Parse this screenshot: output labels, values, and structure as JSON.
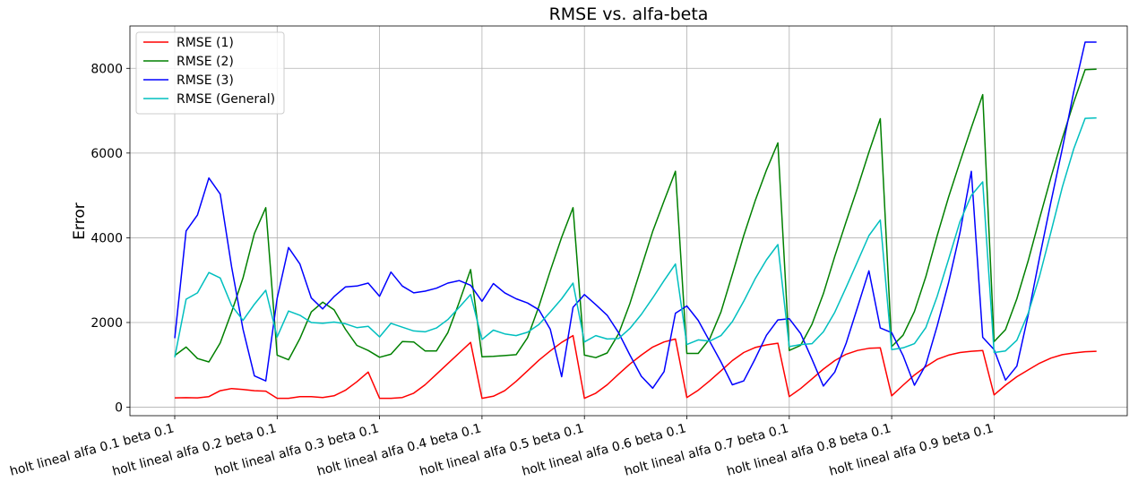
{
  "chart_data": {
    "type": "line",
    "title": "RMSE vs. alfa-beta",
    "xlabel": "",
    "ylabel": "Error",
    "ylim": [
      -200,
      9000
    ],
    "yticks": [
      0,
      2000,
      4000,
      6000,
      8000
    ],
    "grid": true,
    "legend_position": "top-left",
    "xtick_labels": [
      "holt lineal alfa 0.1 beta 0.1",
      "holt lineal alfa 0.2 beta 0.1",
      "holt lineal alfa 0.3 beta 0.1",
      "holt lineal alfa 0.4 beta 0.1",
      "holt lineal alfa 0.5 beta 0.1",
      "holt lineal alfa 0.6 beta 0.1",
      "holt lineal alfa 0.7 beta 0.1",
      "holt lineal alfa 0.8 beta 0.1",
      "holt lineal alfa 0.9 beta 0.1"
    ],
    "xtick_positions": [
      0,
      9,
      18,
      27,
      36,
      45,
      54,
      63,
      72
    ],
    "series": [
      {
        "name": "RMSE (1)",
        "color": "#ff0000",
        "values": [
          220,
          225,
          220,
          250,
          390,
          440,
          420,
          390,
          380,
          210,
          210,
          250,
          250,
          230,
          270,
          400,
          600,
          830,
          210,
          210,
          230,
          330,
          530,
          780,
          1030,
          1280,
          1530,
          210,
          260,
          390,
          610,
          860,
          1110,
          1330,
          1530,
          1690,
          210,
          330,
          530,
          780,
          1020,
          1230,
          1420,
          1540,
          1610,
          230,
          400,
          620,
          860,
          1100,
          1290,
          1410,
          1470,
          1510,
          250,
          440,
          670,
          900,
          1100,
          1250,
          1340,
          1390,
          1400,
          270,
          520,
          760,
          960,
          1130,
          1230,
          1290,
          1320,
          1340,
          290,
          520,
          720,
          880,
          1040,
          1160,
          1240,
          1280,
          1310,
          1320
        ]
      },
      {
        "name": "RMSE (2)",
        "color": "#008000",
        "values": [
          1220,
          1420,
          1150,
          1070,
          1520,
          2250,
          3050,
          4100,
          4710,
          1230,
          1120,
          1620,
          2250,
          2480,
          2300,
          1840,
          1460,
          1340,
          1180,
          1250,
          1550,
          1540,
          1330,
          1330,
          1760,
          2480,
          3250,
          1190,
          1200,
          1220,
          1240,
          1640,
          2380,
          3220,
          4010,
          4710,
          1230,
          1170,
          1280,
          1730,
          2450,
          3300,
          4150,
          4870,
          5570,
          1270,
          1270,
          1610,
          2250,
          3140,
          4050,
          4870,
          5600,
          6240,
          1340,
          1460,
          1960,
          2680,
          3560,
          4380,
          5180,
          6020,
          6810,
          1430,
          1700,
          2260,
          3080,
          4050,
          4960,
          5790,
          6600,
          7380,
          1550,
          1830,
          2560,
          3460,
          4460,
          5430,
          6350,
          7200,
          7970,
          7980
        ]
      },
      {
        "name": "RMSE (3)",
        "color": "#0000ff",
        "values": [
          1630,
          4160,
          4540,
          5410,
          5030,
          3310,
          1840,
          740,
          620,
          2570,
          3770,
          3380,
          2580,
          2320,
          2610,
          2840,
          2860,
          2930,
          2620,
          3190,
          2860,
          2700,
          2740,
          2810,
          2930,
          2990,
          2880,
          2500,
          2920,
          2700,
          2560,
          2460,
          2300,
          1840,
          720,
          2360,
          2660,
          2420,
          2170,
          1760,
          1230,
          730,
          450,
          840,
          2220,
          2390,
          2050,
          1560,
          1070,
          530,
          620,
          1140,
          1700,
          2060,
          2090,
          1740,
          1130,
          500,
          830,
          1510,
          2360,
          3220,
          1870,
          1760,
          1220,
          520,
          1000,
          1920,
          2940,
          4120,
          5570,
          1650,
          1360,
          640,
          970,
          2180,
          3540,
          4850,
          6110,
          7450,
          8620,
          8620
        ]
      },
      {
        "name": "RMSE (General)",
        "color": "#00bfbf",
        "values": [
          1180,
          2550,
          2700,
          3180,
          3050,
          2400,
          2050,
          2430,
          2760,
          1660,
          2270,
          2170,
          2000,
          1980,
          2010,
          1970,
          1880,
          1910,
          1660,
          1980,
          1890,
          1800,
          1780,
          1870,
          2070,
          2360,
          2660,
          1600,
          1820,
          1730,
          1690,
          1770,
          1950,
          2250,
          2560,
          2930,
          1540,
          1690,
          1610,
          1620,
          1860,
          2190,
          2580,
          2990,
          3380,
          1480,
          1590,
          1560,
          1690,
          2020,
          2500,
          3030,
          3480,
          3840,
          1430,
          1480,
          1500,
          1780,
          2240,
          2830,
          3440,
          4050,
          4420,
          1360,
          1400,
          1500,
          1880,
          2620,
          3490,
          4380,
          5000,
          5320,
          1290,
          1330,
          1580,
          2220,
          3100,
          4140,
          5200,
          6100,
          6820,
          6830
        ]
      }
    ]
  }
}
